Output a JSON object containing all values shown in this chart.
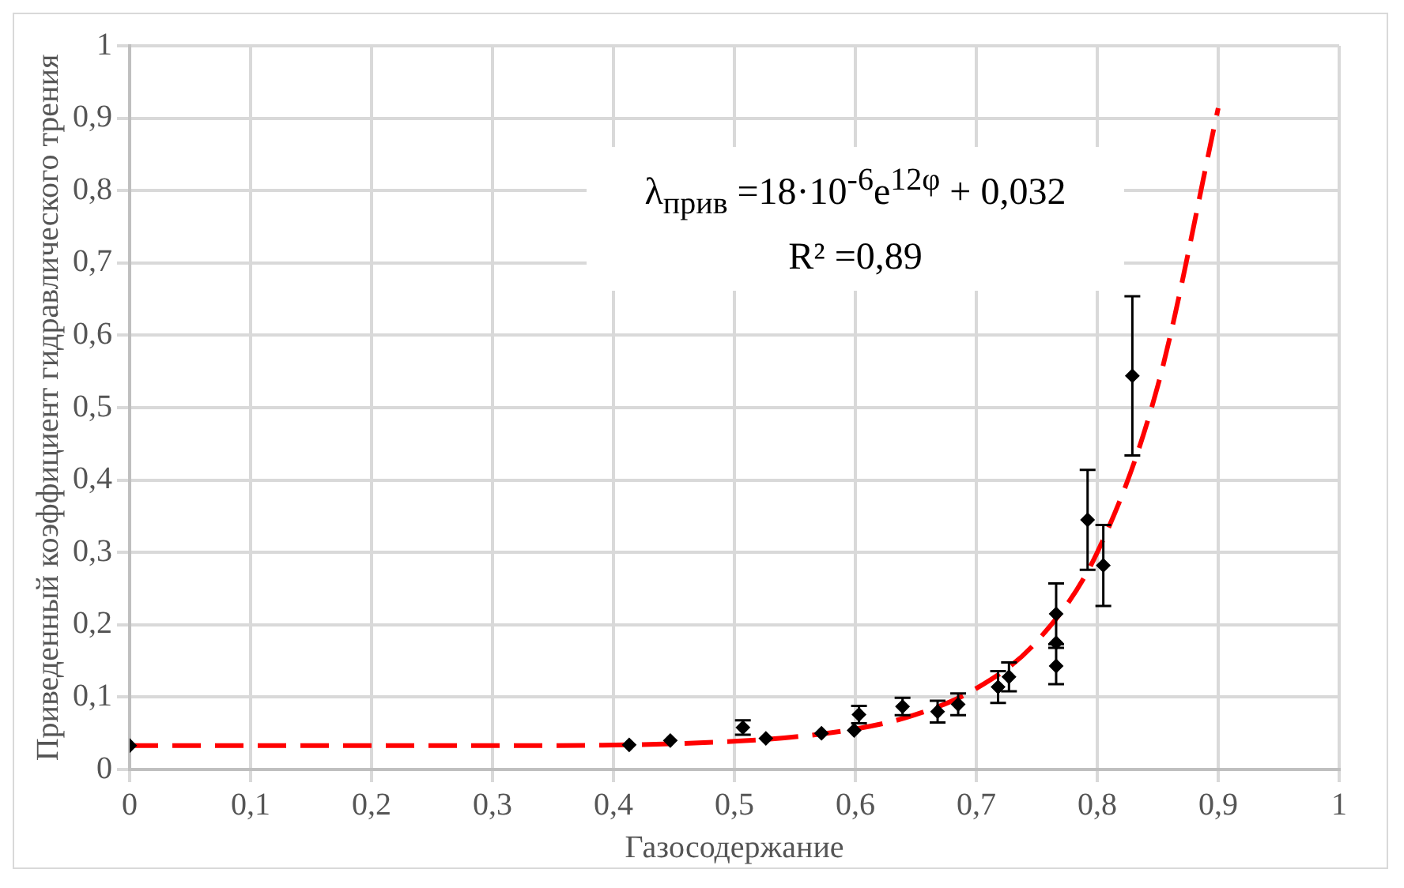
{
  "chart_data": {
    "type": "scatter",
    "xlabel": "Газосодержание",
    "ylabel": "Приведенный коэффициент гидравлического трения",
    "series": [
      {
        "type": "scatter",
        "color": "#000000",
        "marker": "diamond",
        "x": [
          0,
          0.413,
          0.447,
          0.507,
          0.526,
          0.572,
          0.599,
          0.603,
          0.639,
          0.668,
          0.685,
          0.718,
          0.727,
          0.766,
          0.766,
          0.766,
          0.792,
          0.805,
          0.829
        ],
        "values": [
          0.033,
          0.034,
          0.04,
          0.058,
          0.043,
          0.05,
          0.054,
          0.076,
          0.087,
          0.08,
          0.09,
          0.114,
          0.128,
          0.143,
          0.175,
          0.215,
          0.345,
          0.282,
          0.544
        ],
        "errors": [
          null,
          null,
          null,
          0.01,
          null,
          null,
          null,
          0.012,
          0.012,
          0.015,
          0.015,
          0.022,
          0.02,
          0.025,
          null,
          0.042,
          0.069,
          0.056,
          0.11
        ]
      },
      {
        "type": "line",
        "color": "#ff0000",
        "line_style": "dashed",
        "marker": "none",
        "x": [
          0,
          0.3,
          0.5,
          0.6,
          0.65,
          0.7,
          0.75,
          0.8,
          0.85,
          0.9
        ],
        "values": [
          0.033,
          0.033,
          0.039,
          0.056,
          0.076,
          0.112,
          0.177,
          0.3,
          0.53,
          0.914
        ]
      }
    ],
    "annotations": [
      "λ$_{прив}$ =18·10$^{-6}$e$^{12φ}$ + 0,032",
      "R² =0,89"
    ],
    "xlim": [
      0,
      1
    ],
    "xticks": [
      {
        "value": 0,
        "label": "0"
      },
      {
        "value": 0.1,
        "label": "0,1"
      },
      {
        "value": 0.2,
        "label": "0,2"
      },
      {
        "value": 0.3,
        "label": "0,3"
      },
      {
        "value": 0.4,
        "label": "0,4"
      },
      {
        "value": 0.5,
        "label": "0,5"
      },
      {
        "value": 0.6,
        "label": "0,6"
      },
      {
        "value": 0.7,
        "label": "0,7"
      },
      {
        "value": 0.8,
        "label": "0,8"
      },
      {
        "value": 0.9,
        "label": "0,9"
      },
      {
        "value": 1,
        "label": "1"
      }
    ],
    "ylim": [
      0,
      1
    ],
    "yticks": [
      {
        "value": 0,
        "label": "0"
      },
      {
        "value": 0.1,
        "label": "0,1"
      },
      {
        "value": 0.2,
        "label": "0,2"
      },
      {
        "value": 0.3,
        "label": "0,3"
      },
      {
        "value": 0.4,
        "label": "0,4"
      },
      {
        "value": 0.5,
        "label": "0,5"
      },
      {
        "value": 0.6,
        "label": "0,6"
      },
      {
        "value": 0.7,
        "label": "0,7"
      },
      {
        "value": 0.8,
        "label": "0,8"
      },
      {
        "value": 0.9,
        "label": "0,9"
      },
      {
        "value": 1,
        "label": "1"
      }
    ],
    "grid": true,
    "legend": false
  }
}
